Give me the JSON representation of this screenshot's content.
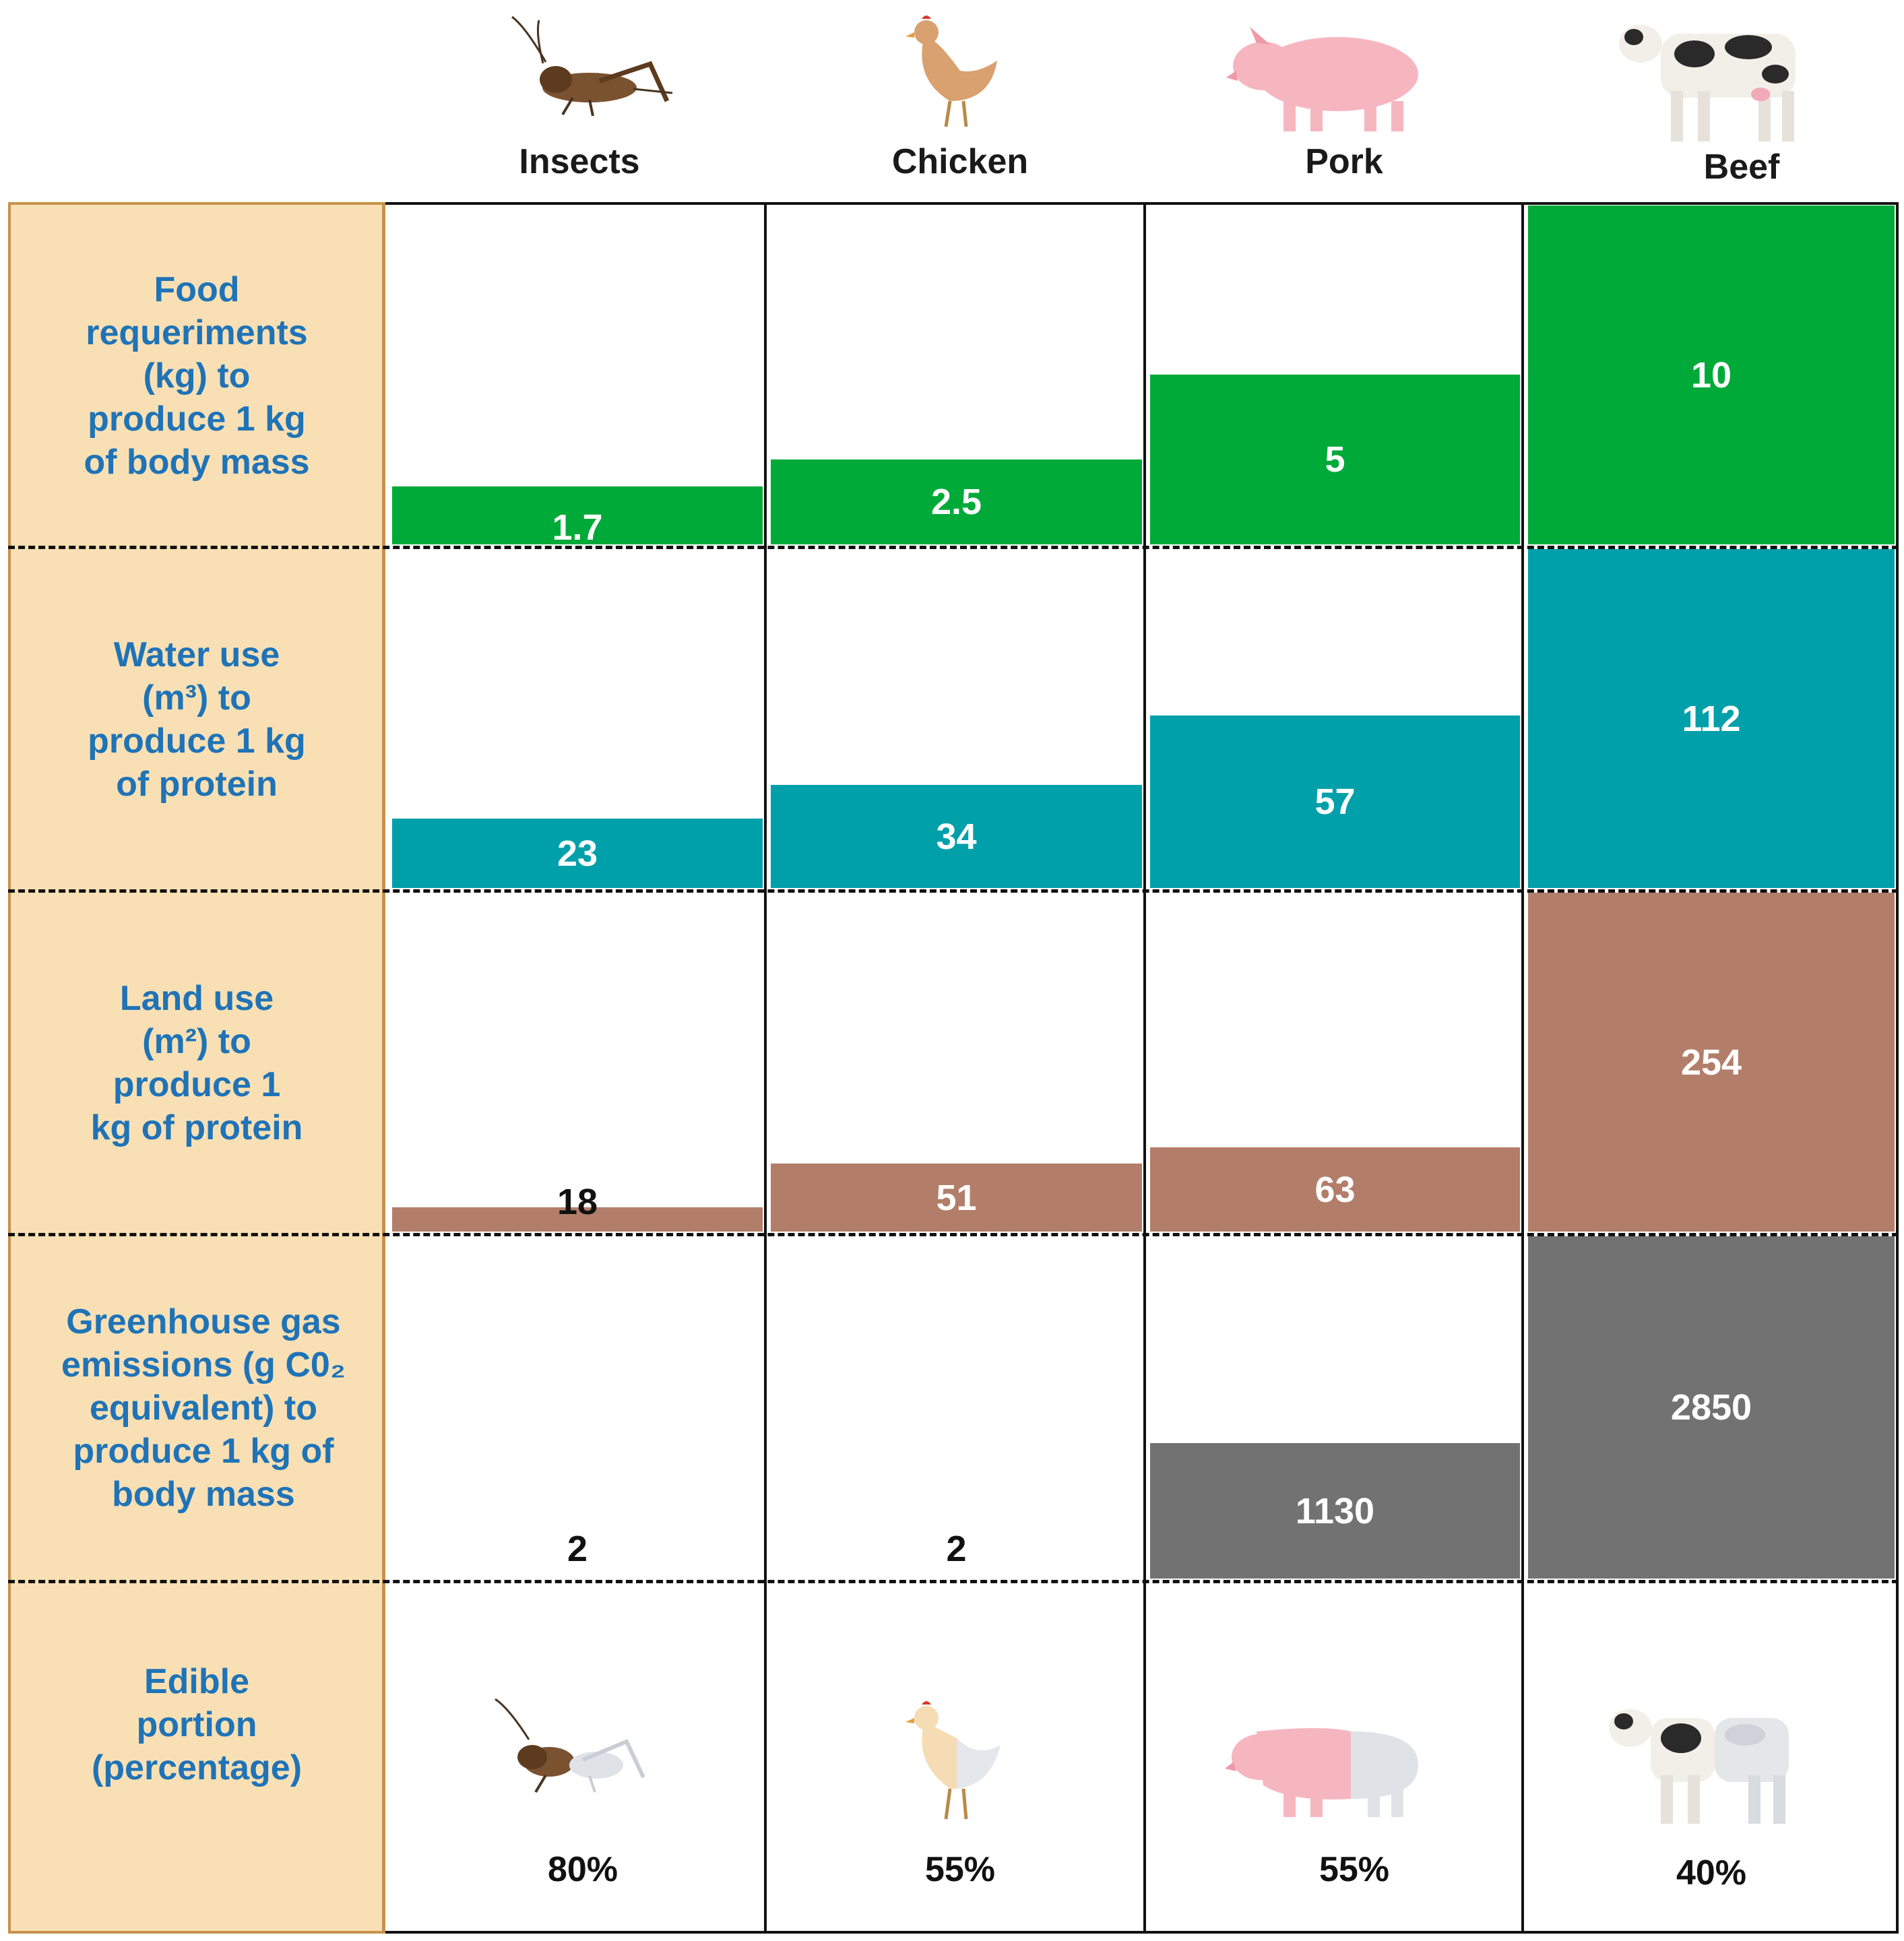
{
  "columns": [
    "Insects",
    "Chicken",
    "Pork",
    "Beef"
  ],
  "colors": {
    "food": "#00aa38",
    "water": "#00a0aa",
    "land": "#b27e6a",
    "ghg": "#727272",
    "label_text": "#1f73b7",
    "label_panel": "#f9e0b4"
  },
  "icons": [
    "cricket-icon",
    "chicken-icon",
    "pig-icon",
    "cow-icon"
  ],
  "chart_data": {
    "type": "bar",
    "categories": [
      "Insects",
      "Chicken",
      "Pork",
      "Beef"
    ],
    "rows": [
      {
        "key": "food",
        "label_lines": [
          "Food",
          "requeriments",
          "(kg) to",
          "produce 1 kg",
          "of body mass"
        ],
        "values": [
          1.7,
          2.5,
          5,
          10
        ],
        "value_labels": [
          "1.7",
          "2.5",
          "5",
          "10"
        ]
      },
      {
        "key": "water",
        "label_lines": [
          "Water use",
          "(m³) to",
          "produce 1 kg",
          "of protein"
        ],
        "values": [
          23,
          34,
          57,
          112
        ],
        "value_labels": [
          "23",
          "34",
          "57",
          "112"
        ]
      },
      {
        "key": "land",
        "label_lines": [
          "Land use",
          "(m²) to",
          "produce 1",
          "kg of protein"
        ],
        "values": [
          18,
          51,
          63,
          254
        ],
        "value_labels": [
          "18",
          "51",
          "63",
          "254"
        ]
      },
      {
        "key": "ghg",
        "label_lines": [
          "Greenhouse gas",
          "emissions (g C0₂",
          "equivalent) to",
          "produce 1 kg of",
          "body mass"
        ],
        "values": [
          2,
          2,
          1130,
          2850
        ],
        "value_labels": [
          "2",
          "2",
          "1130",
          "2850"
        ]
      }
    ],
    "edible": {
      "label_lines": [
        "Edible",
        "portion",
        "(percentage)"
      ],
      "values": [
        80,
        55,
        55,
        40
      ],
      "value_labels": [
        "80%",
        "55%",
        "55%",
        "40%"
      ]
    }
  }
}
